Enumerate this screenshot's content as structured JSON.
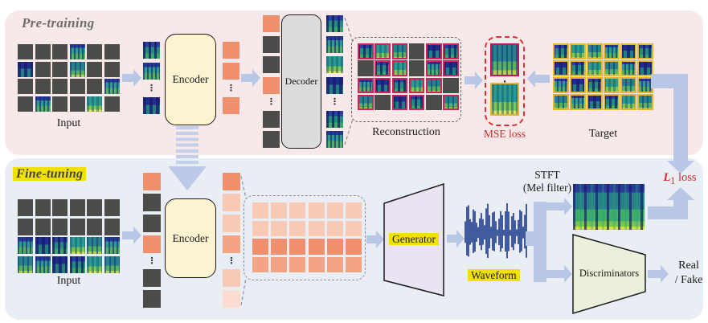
{
  "pretrain": {
    "section_label": "Pre-training",
    "input_label": "Input",
    "encoder_label": "Encoder",
    "decoder_label": "Decoder",
    "reconstruction_label": "Reconstruction",
    "mse_label": "MSE loss",
    "mse_comma": ",",
    "target_label": "Target",
    "input_grid": {
      "rows": [
        "m m m s m m",
        "s m m s m m",
        "m m m m m s",
        "m s m m s m"
      ]
    },
    "visible_column": [
      "s",
      "s",
      "dots",
      "s"
    ],
    "latent_column": [
      "p",
      "p",
      "dots",
      "p"
    ],
    "decoder_in_column": [
      "p",
      "m",
      "m",
      "p",
      "dots",
      "m",
      "m"
    ],
    "decoder_out_column": [
      "s",
      "s",
      "s",
      "s",
      "dots",
      "s",
      "s"
    ],
    "reconstruction_grid": {
      "rows": [
        "r r r m r r",
        "m r r m r r",
        "r r r r r m",
        "r m r r m r"
      ]
    },
    "target_grid": {
      "rows": [
        "t t t t t t",
        "t t t t t t",
        "t t t t t t",
        "t t t t t t"
      ]
    }
  },
  "finetune": {
    "section_label": "Fine-tuning",
    "input_label": "Input",
    "encoder_label": "Encoder",
    "generator_label": "Generator",
    "waveform_label": "Waveform",
    "stft_line1": "STFT",
    "stft_line2": "(Mel filter)",
    "discriminators_label": "Discriminators",
    "real_fake_line1": "Real",
    "real_fake_line2": "/ Fake",
    "l1_symbol": "L",
    "l1_sub": "1",
    "l1_rest": " loss",
    "input_grid": {
      "rows": [
        "m m m m m m",
        "m m m m m m",
        "s s s s s s",
        "s s s s s s"
      ]
    },
    "token_column": [
      "p",
      "m",
      "m",
      "p",
      "dots",
      "m",
      "m"
    ],
    "latent_column": [
      "p",
      "pl",
      "pl",
      "pm",
      "dots",
      "pl",
      "pll"
    ],
    "feature_grid": {
      "rows": [
        "pl pl pl pl pl pl",
        "pl pl pl pl pl pl",
        "p p p p p p",
        "pm pm pm pm pm pm"
      ]
    }
  },
  "colors": {
    "accent_arrow": "#b9c7e6",
    "salmon": "#f0906f",
    "mask": "#4b4b49",
    "pretrain_bg": "#f7e9e9",
    "finetune_bg": "#e9edf4",
    "highlight": "#f0e100",
    "loss_red": "#d22b2b",
    "recon_border": "#cf2257",
    "target_border": "#e6b42e",
    "waveform_color": "#24408f"
  }
}
